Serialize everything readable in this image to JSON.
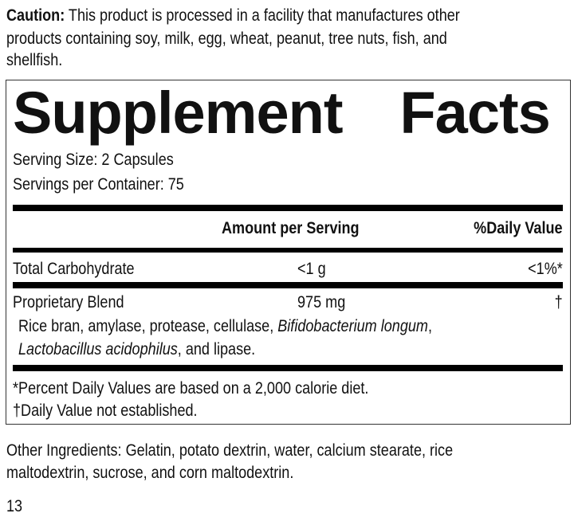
{
  "caution": {
    "label": "Caution:",
    "line1": " This product is processed in a facility that manufactures other",
    "line2": "products containing soy, milk, egg, wheat, peanut, tree nuts, fish, and",
    "line3": "shellfish."
  },
  "facts": {
    "title_word1": "Supplement",
    "title_word2": "Facts",
    "serving_size": "Serving Size: 2 Capsules",
    "servings_per_container": "Servings per Container: 75",
    "header_amount": "Amount per Serving",
    "header_dv": "%Daily Value",
    "rows": [
      {
        "name": "Total Carbohydrate",
        "amount": "<1 g",
        "dv": "<1%*"
      },
      {
        "name": "Proprietary Blend",
        "amount": "975 mg",
        "dv": "†"
      }
    ],
    "blend": {
      "part1": "Rice bran, amylase, protease, cellulase, ",
      "italic1": "Bifidobacterium longum",
      "part2": ",",
      "italic2": "Lactobacillus acidophilus",
      "part3": ", and lipase."
    },
    "footnote1": "*Percent Daily Values are based on a 2,000 calorie diet.",
    "footnote2": "†Daily Value not established."
  },
  "other_ingredients": {
    "line1": "Other Ingredients: Gelatin, potato dextrin, water, calcium stearate, rice",
    "line2": "maltodextrin, sucrose, and corn maltodextrin."
  },
  "page_number": "13"
}
